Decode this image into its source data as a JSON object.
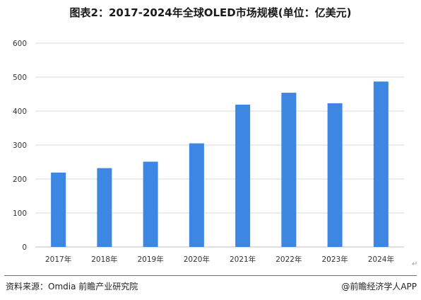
{
  "chart_data": {
    "type": "bar",
    "title": "图表2：2017-2024年全球OLED市场规模(单位：亿美元)",
    "categories": [
      "2017年",
      "2018年",
      "2019年",
      "2020年",
      "2021年",
      "2022年",
      "2023年",
      "2024年"
    ],
    "values": [
      219,
      232,
      251,
      305,
      419,
      454,
      423,
      487
    ],
    "ylim": [
      0,
      600
    ],
    "yticks": [
      0,
      100,
      200,
      300,
      400,
      500,
      600
    ],
    "grid": true,
    "bar_color": "#3d86e2"
  },
  "footer": {
    "source": "资料来源：Omdia 前瞻产业研究院",
    "brand": "@前瞻经济学人APP"
  }
}
